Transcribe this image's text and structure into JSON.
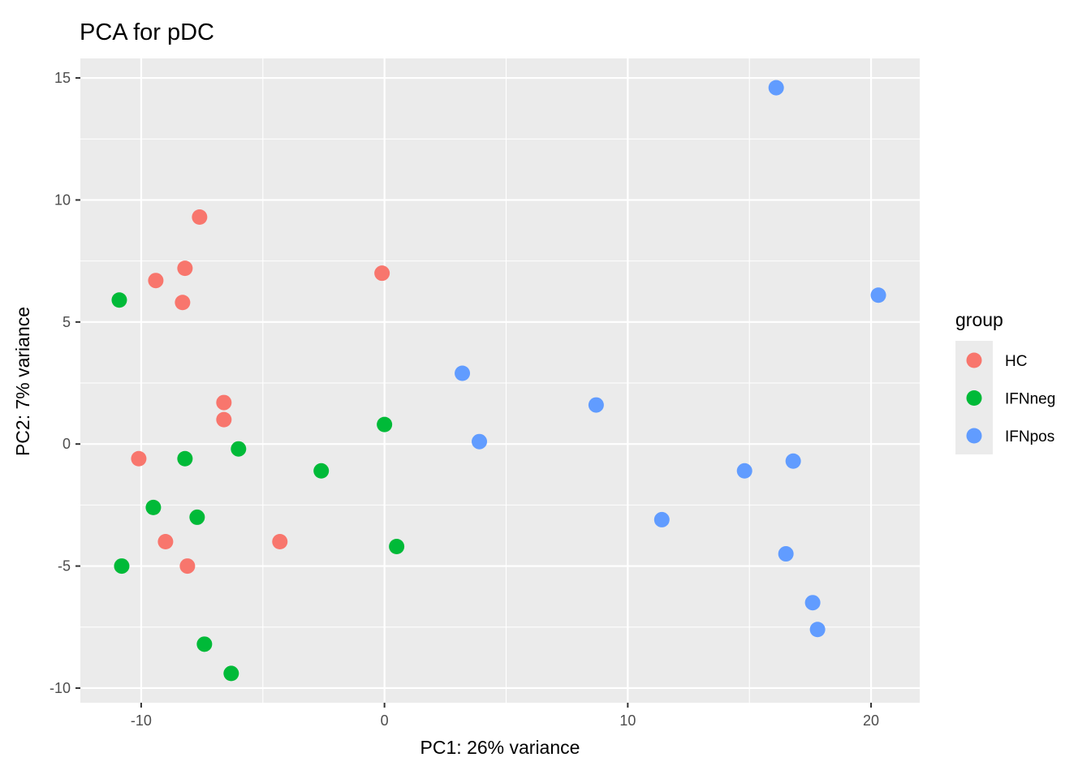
{
  "chart_data": {
    "type": "scatter",
    "title": "PCA for pDC",
    "xlabel": "PC1: 26% variance",
    "ylabel": "PC2: 7% variance",
    "xlim": [
      -12.5,
      22
    ],
    "ylim": [
      -10.6,
      15.8
    ],
    "x_ticks": [
      -10,
      0,
      10,
      20
    ],
    "x_tick_labels": [
      "-10",
      "0",
      "10",
      "20"
    ],
    "y_ticks": [
      -10,
      -5,
      0,
      5,
      10,
      15
    ],
    "y_tick_labels": [
      "-10",
      "-5",
      "0",
      "5",
      "10",
      "15"
    ],
    "grid": true,
    "legend": {
      "title": "group",
      "position": "right"
    },
    "series": [
      {
        "name": "HC",
        "color": "#F8766D",
        "points": [
          {
            "x": -7.6,
            "y": 9.3
          },
          {
            "x": -8.2,
            "y": 7.2
          },
          {
            "x": -9.4,
            "y": 6.7
          },
          {
            "x": -8.3,
            "y": 5.8
          },
          {
            "x": -0.1,
            "y": 7.0
          },
          {
            "x": -6.6,
            "y": 1.7
          },
          {
            "x": -6.6,
            "y": 1.0
          },
          {
            "x": -10.1,
            "y": -0.6
          },
          {
            "x": -9.0,
            "y": -4.0
          },
          {
            "x": -8.1,
            "y": -5.0
          },
          {
            "x": -4.3,
            "y": -4.0
          }
        ]
      },
      {
        "name": "IFNneg",
        "color": "#00BA38",
        "points": [
          {
            "x": -10.9,
            "y": 5.9
          },
          {
            "x": -0.0,
            "y": 0.8
          },
          {
            "x": -6.0,
            "y": -0.2
          },
          {
            "x": -8.2,
            "y": -0.6
          },
          {
            "x": -2.6,
            "y": -1.1
          },
          {
            "x": -9.5,
            "y": -2.6
          },
          {
            "x": -7.7,
            "y": -3.0
          },
          {
            "x": -10.8,
            "y": -5.0
          },
          {
            "x": 0.5,
            "y": -4.2
          },
          {
            "x": -7.4,
            "y": -8.2
          },
          {
            "x": -6.3,
            "y": -9.4
          }
        ]
      },
      {
        "name": "IFNpos",
        "color": "#619CFF",
        "points": [
          {
            "x": 16.1,
            "y": 14.6
          },
          {
            "x": 20.3,
            "y": 6.1
          },
          {
            "x": 3.2,
            "y": 2.9
          },
          {
            "x": 8.7,
            "y": 1.6
          },
          {
            "x": 3.9,
            "y": 0.1
          },
          {
            "x": 14.8,
            "y": -1.1
          },
          {
            "x": 16.8,
            "y": -0.7
          },
          {
            "x": 11.4,
            "y": -3.1
          },
          {
            "x": 16.5,
            "y": -4.5
          },
          {
            "x": 17.6,
            "y": -6.5
          },
          {
            "x": 17.8,
            "y": -7.6
          }
        ]
      }
    ]
  },
  "colors": {
    "panel_background": "#EBEBEB",
    "grid": "#FFFFFF",
    "tick": "#333333"
  }
}
